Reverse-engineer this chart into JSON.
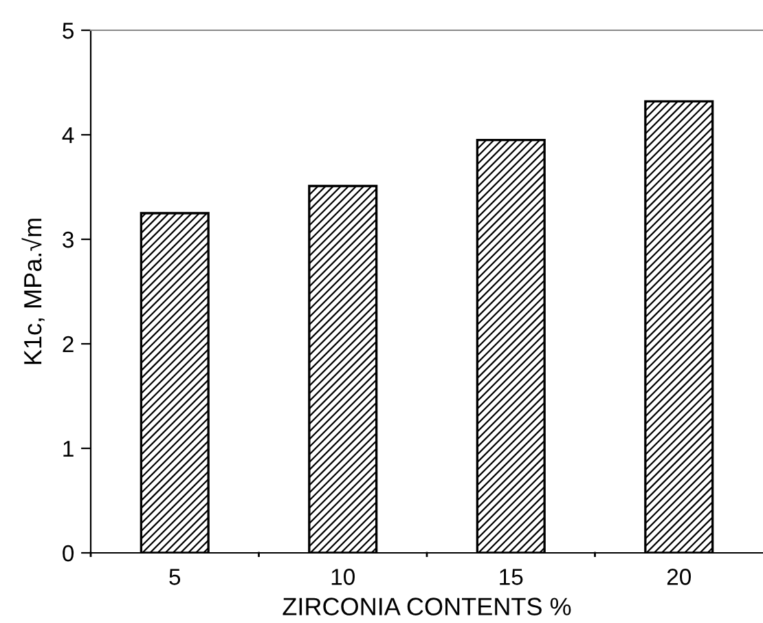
{
  "chart_data": {
    "type": "bar",
    "xlabel": "ZIRCONIA CONTENTS %",
    "ylabel": "K1c, MPa.√m",
    "categories": [
      "5",
      "10",
      "15",
      "20"
    ],
    "series": [
      {
        "color": "#000000",
        "values": [
          3.25,
          3.51,
          3.95,
          4.32
        ]
      }
    ],
    "ylim": [
      0,
      5
    ],
    "yticks": [
      0,
      1,
      2,
      3,
      4,
      5
    ],
    "grid": false,
    "legend": false
  }
}
